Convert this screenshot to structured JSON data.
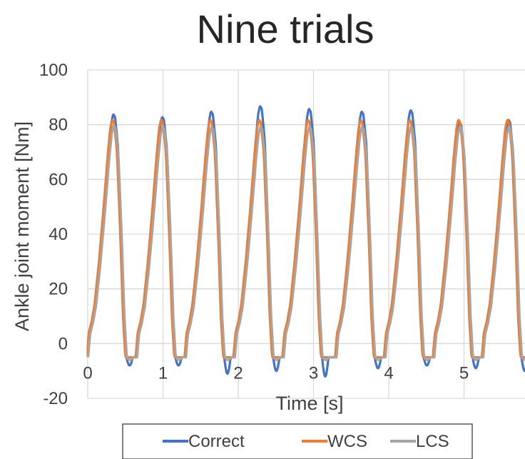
{
  "chart_data": {
    "type": "line",
    "title": "Nine trials",
    "xlabel": "Time [s]",
    "ylabel": "Ankle joint moment [Nm]",
    "xlim": [
      0,
      5.9
    ],
    "ylim": [
      -20,
      100
    ],
    "x_ticks": [
      "0",
      "1",
      "2",
      "3",
      "4",
      "5"
    ],
    "y_ticks": [
      "-20",
      "0",
      "20",
      "40",
      "60",
      "80",
      "100"
    ],
    "grid": true,
    "legend": "bottom",
    "cycle_starts": [
      0.0,
      0.65,
      1.3,
      1.95,
      2.6,
      3.3,
      3.95,
      4.6,
      5.25
    ],
    "series": [
      {
        "name": "Correct",
        "color": "#4472C4",
        "peaks": [
          84,
          83,
          85,
          87,
          86,
          85,
          85.5,
          81,
          82
        ],
        "minima": [
          -8,
          -8,
          -11,
          -10,
          -12,
          -9,
          -8,
          -9,
          -10
        ]
      },
      {
        "name": "WCS",
        "color": "#ED7D31",
        "peaks": [
          82,
          82,
          82,
          82,
          82,
          82,
          82,
          82,
          82
        ],
        "minima": [
          -5,
          -5,
          -5,
          -5,
          -5,
          -5,
          -5,
          -5,
          -5
        ]
      },
      {
        "name": "LCS",
        "color": "#A5A5A5",
        "peaks": [
          80,
          79.5,
          79.5,
          79.5,
          79.5,
          79.5,
          79.5,
          79.5,
          79.5
        ],
        "minima": [
          -6,
          -6,
          -6,
          -6,
          -6,
          -6,
          -6,
          -6,
          -6
        ]
      }
    ]
  }
}
